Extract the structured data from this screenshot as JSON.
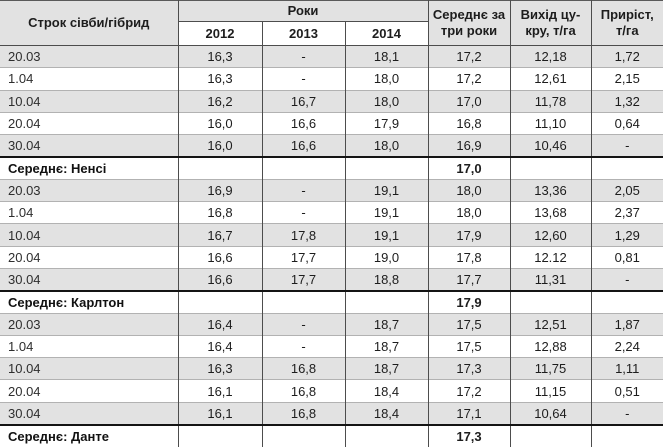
{
  "table": {
    "header": {
      "col_sowing": "Строк сівби/гібрид",
      "col_years_group": "Роки",
      "years": [
        "2012",
        "2013",
        "2014"
      ],
      "col_avg": "Середнє за\nтри роки",
      "col_sugar": "Вихід цу-\nкру, т/га",
      "col_gain": "Приріст,\nт/га"
    },
    "rows": [
      {
        "type": "data",
        "label": "20.03",
        "values": [
          "16,3",
          "-",
          "18,1"
        ],
        "avg": "17,2",
        "sugar": "12,18",
        "gain": "1,72"
      },
      {
        "type": "data",
        "label": "1.04",
        "values": [
          "16,3",
          "-",
          "18,0"
        ],
        "avg": "17,2",
        "sugar": "12,61",
        "gain": "2,15"
      },
      {
        "type": "data",
        "label": "10.04",
        "values": [
          "16,2",
          "16,7",
          "18,0"
        ],
        "avg": "17,0",
        "sugar": "11,78",
        "gain": "1,32"
      },
      {
        "type": "data",
        "label": "20.04",
        "values": [
          "16,0",
          "16,6",
          "17,9"
        ],
        "avg": "16,8",
        "sugar": "11,10",
        "gain": "0,64"
      },
      {
        "type": "data",
        "label": "30.04",
        "values": [
          "16,0",
          "16,6",
          "18,0"
        ],
        "avg": "16,9",
        "sugar": "10,46",
        "gain": "-"
      },
      {
        "type": "summary",
        "label": "Середнє: Ненсі",
        "avg": "17,0"
      },
      {
        "type": "data",
        "label": "20.03",
        "values": [
          "16,9",
          "-",
          "19,1"
        ],
        "avg": "18,0",
        "sugar": "13,36",
        "gain": "2,05"
      },
      {
        "type": "data",
        "label": "1.04",
        "values": [
          "16,8",
          "-",
          "19,1"
        ],
        "avg": "18,0",
        "sugar": "13,68",
        "gain": "2,37"
      },
      {
        "type": "data",
        "label": "10.04",
        "values": [
          "16,7",
          "17,8",
          "19,1"
        ],
        "avg": "17,9",
        "sugar": "12,60",
        "gain": "1,29"
      },
      {
        "type": "data",
        "label": "20.04",
        "values": [
          "16,6",
          "17,7",
          "19,0"
        ],
        "avg": "17,8",
        "sugar": "12.12",
        "gain": "0,81"
      },
      {
        "type": "data",
        "label": "30.04",
        "values": [
          "16,6",
          "17,7",
          "18,8"
        ],
        "avg": "17,7",
        "sugar": "11,31",
        "gain": "-"
      },
      {
        "type": "summary",
        "label": "Середнє:  Карлтон",
        "avg": "17,9"
      },
      {
        "type": "data",
        "label": "20.03",
        "values": [
          "16,4",
          "-",
          "18,7"
        ],
        "avg": "17,5",
        "sugar": "12,51",
        "gain": "1,87"
      },
      {
        "type": "data",
        "label": "1.04",
        "values": [
          "16,4",
          "-",
          "18,7"
        ],
        "avg": "17,5",
        "sugar": "12,88",
        "gain": "2,24"
      },
      {
        "type": "data",
        "label": "10.04",
        "values": [
          "16,3",
          "16,8",
          "18,7"
        ],
        "avg": "17,3",
        "sugar": "11,75",
        "gain": "1,11"
      },
      {
        "type": "data",
        "label": "20.04",
        "values": [
          "16,1",
          "16,8",
          "18,4"
        ],
        "avg": "17,2",
        "sugar": "11,15",
        "gain": "0,51"
      },
      {
        "type": "data",
        "label": "30.04",
        "values": [
          "16,1",
          "16,8",
          "18,4"
        ],
        "avg": "17,1",
        "sugar": "10,64",
        "gain": "-"
      },
      {
        "type": "summary",
        "label": "Середнє: Данте",
        "avg": "17,3"
      }
    ]
  }
}
